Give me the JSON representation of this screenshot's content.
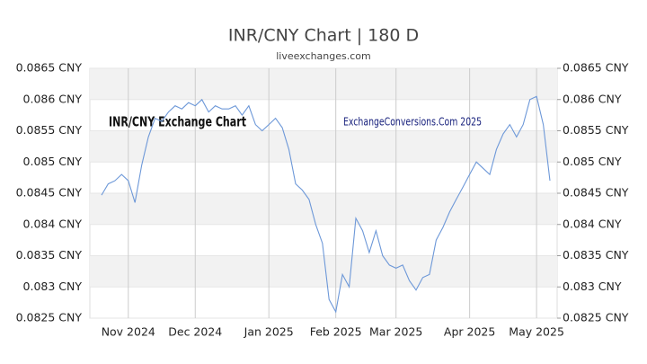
{
  "chart_data": {
    "type": "line",
    "title": "INR/CNY Chart | 180 D",
    "subtitle": "liveexchanges.com",
    "annotations": [
      "INR/CNY Exchange Chart",
      "ExchangeConversions.Com 2025"
    ],
    "categories": [
      null,
      null,
      null,
      null,
      "Nov 2024",
      null,
      null,
      null,
      null,
      null,
      null,
      null,
      null,
      null,
      "Dec 2024",
      null,
      null,
      null,
      null,
      null,
      null,
      null,
      null,
      null,
      null,
      "Jan 2025",
      null,
      null,
      null,
      null,
      null,
      null,
      null,
      null,
      null,
      "Feb 2025",
      null,
      null,
      null,
      null,
      null,
      null,
      null,
      null,
      "Mar 2025",
      null,
      null,
      null,
      null,
      null,
      null,
      null,
      null,
      null,
      null,
      "Apr 2025",
      null,
      null,
      null,
      null,
      null,
      null,
      null,
      null,
      null,
      "May 2025",
      null,
      null
    ],
    "series": [
      {
        "name": "INR/CNY",
        "color": "#6d98d8",
        "values": [
          0.08447,
          0.08465,
          0.0847,
          0.0848,
          0.0847,
          0.08435,
          0.08495,
          0.0854,
          0.0857,
          0.08565,
          0.0858,
          0.0859,
          0.08585,
          0.08595,
          0.0859,
          0.086,
          0.0858,
          0.0859,
          0.08585,
          0.08585,
          0.0859,
          0.08575,
          0.0859,
          0.0856,
          0.0855,
          0.0856,
          0.0857,
          0.08555,
          0.0852,
          0.08465,
          0.08455,
          0.0844,
          0.084,
          0.0837,
          0.0828,
          0.0826,
          0.0832,
          0.083,
          0.0841,
          0.0839,
          0.08355,
          0.0839,
          0.0835,
          0.08335,
          0.0833,
          0.08335,
          0.0831,
          0.08295,
          0.08315,
          0.0832,
          0.08375,
          0.08395,
          0.0842,
          0.0844,
          0.0846,
          0.0848,
          0.085,
          0.0849,
          0.0848,
          0.0852,
          0.08545,
          0.0856,
          0.0854,
          0.0856,
          0.086,
          0.08605,
          0.0856,
          0.0847
        ]
      }
    ],
    "ylim": [
      0.0825,
      0.0865
    ],
    "yticks": [
      {
        "value": 0.0825,
        "label": "0.0825 CNY"
      },
      {
        "value": 0.083,
        "label": "0.083 CNY"
      },
      {
        "value": 0.0835,
        "label": "0.0835 CNY"
      },
      {
        "value": 0.084,
        "label": "0.084 CNY"
      },
      {
        "value": 0.0845,
        "label": "0.0845 CNY"
      },
      {
        "value": 0.085,
        "label": "0.085 CNY"
      },
      {
        "value": 0.0855,
        "label": "0.0855 CNY"
      },
      {
        "value": 0.086,
        "label": "0.086 CNY"
      },
      {
        "value": 0.0865,
        "label": "0.0865 CNY"
      }
    ],
    "y2lim": [
      0.0825,
      0.0865
    ],
    "y2ticks": [
      {
        "value": 0.0825,
        "label": "0.0825 CNY"
      },
      {
        "value": 0.083,
        "label": "0.083 CNY"
      },
      {
        "value": 0.0835,
        "label": "0.0835 CNY"
      },
      {
        "value": 0.084,
        "label": "0.084 CNY"
      },
      {
        "value": 0.0845,
        "label": "0.0845 CNY"
      },
      {
        "value": 0.085,
        "label": "0.085 CNY"
      },
      {
        "value": 0.0855,
        "label": "0.0855 CNY"
      },
      {
        "value": 0.086,
        "label": "0.086 CNY"
      },
      {
        "value": 0.0865,
        "label": "0.0865 CNY"
      }
    ],
    "grid": true
  }
}
